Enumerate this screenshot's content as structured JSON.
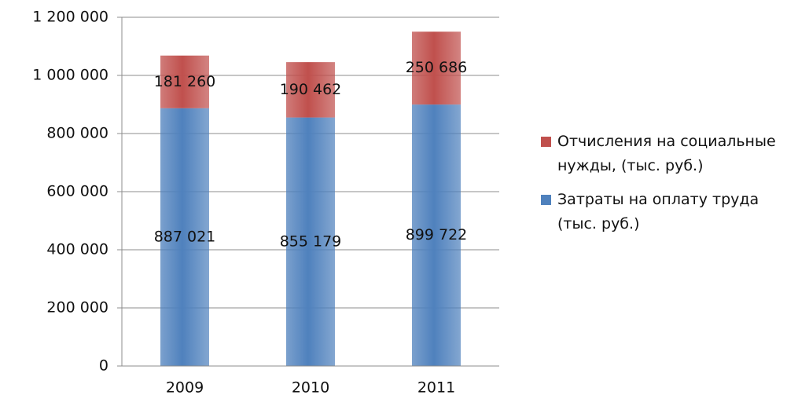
{
  "chart_data": {
    "type": "stacked_bar",
    "categories": [
      "2009",
      "2010",
      "2011"
    ],
    "series": [
      {
        "name": "Затраты на оплату труда (тыс. руб.)",
        "color": "#4f81bd",
        "values": [
          887021,
          855179,
          899722
        ],
        "value_labels": [
          "887 021",
          "855 179",
          "899 722"
        ]
      },
      {
        "name": "Отчисления на социальные нужды, (тыс. руб.)",
        "color": "#c0504d",
        "values": [
          181260,
          190462,
          250686
        ],
        "value_labels": [
          "181 260",
          "190 462",
          "250 686"
        ]
      }
    ],
    "ylim": [
      0,
      1200000
    ],
    "yticks": [
      {
        "value": 0,
        "label": "0"
      },
      {
        "value": 200000,
        "label": "200 000"
      },
      {
        "value": 400000,
        "label": "400 000"
      },
      {
        "value": 600000,
        "label": "600 000"
      },
      {
        "value": 800000,
        "label": "800 000"
      },
      {
        "value": 1000000,
        "label": "1 000 000"
      },
      {
        "value": 1200000,
        "label": "1 200 000"
      }
    ],
    "grid": true,
    "legend": "right"
  }
}
